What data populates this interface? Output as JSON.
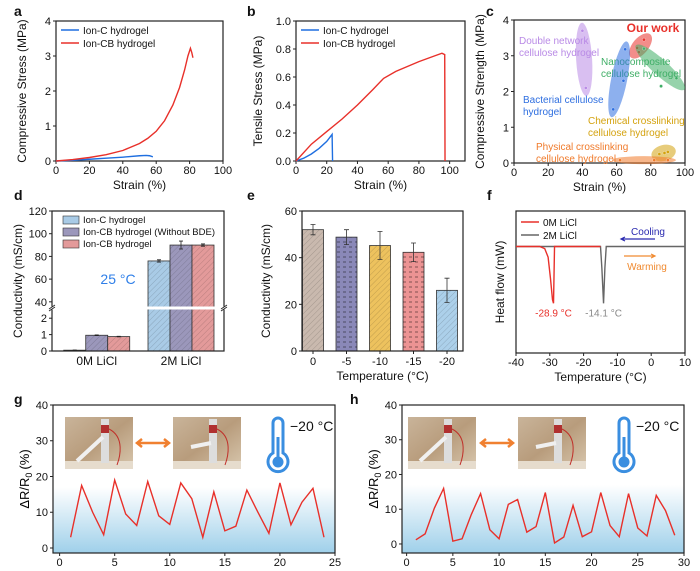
{
  "panel_letters": [
    "a",
    "b",
    "c",
    "d",
    "e",
    "f",
    "g",
    "h"
  ],
  "chart_data": [
    {
      "panel": "a",
      "type": "line",
      "xlabel": "Strain (%)",
      "ylabel": "Compressive Stress (MPa)",
      "xlim": [
        0,
        100
      ],
      "ylim": [
        0,
        4
      ],
      "xticks": [
        "0",
        "20",
        "40",
        "60",
        "80",
        "100"
      ],
      "yticks": [
        "0",
        "1",
        "2",
        "3",
        "4"
      ],
      "legend": "top-left",
      "series": [
        {
          "name": "Ion-C hydrogel",
          "color": "#1f6fe0",
          "points": [
            [
              0,
              0
            ],
            [
              10,
              0.02
            ],
            [
              20,
              0.05
            ],
            [
              30,
              0.08
            ],
            [
              40,
              0.11
            ],
            [
              50,
              0.15
            ],
            [
              54,
              0.16
            ],
            [
              56,
              0.15
            ],
            [
              58,
              0.12
            ]
          ]
        },
        {
          "name": "Ion-CB hydrogel",
          "color": "#e8302a",
          "points": [
            [
              0,
              0
            ],
            [
              10,
              0.04
            ],
            [
              20,
              0.1
            ],
            [
              30,
              0.18
            ],
            [
              40,
              0.3
            ],
            [
              50,
              0.5
            ],
            [
              55,
              0.65
            ],
            [
              60,
              0.85
            ],
            [
              65,
              1.15
            ],
            [
              70,
              1.6
            ],
            [
              74,
              2.1
            ],
            [
              77,
              2.6
            ],
            [
              79,
              3.0
            ],
            [
              80.5,
              3.22
            ],
            [
              81.3,
              3.1
            ],
            [
              82,
              2.95
            ]
          ]
        }
      ]
    },
    {
      "panel": "b",
      "type": "line",
      "xlabel": "Strain (%)",
      "ylabel": "Tensile Stress (MPa)",
      "xlim": [
        0,
        110
      ],
      "ylim": [
        0,
        1
      ],
      "xticks": [
        "0",
        "20",
        "40",
        "60",
        "80",
        "100"
      ],
      "yticks": [
        "0.0",
        "0.2",
        "0.4",
        "0.6",
        "0.8",
        "1.0"
      ],
      "legend": "top-left",
      "series": [
        {
          "name": "Ion-C hydrogel",
          "color": "#1f6fe0",
          "points": [
            [
              0,
              0
            ],
            [
              5,
              0.02
            ],
            [
              10,
              0.05
            ],
            [
              15,
              0.09
            ],
            [
              20,
              0.14
            ],
            [
              23.5,
              0.19
            ],
            [
              23.8,
              0
            ]
          ]
        },
        {
          "name": "Ion-CB hydrogel",
          "color": "#e8302a",
          "points": [
            [
              0,
              0
            ],
            [
              10,
              0.12
            ],
            [
              20,
              0.21
            ],
            [
              30,
              0.3
            ],
            [
              40,
              0.4
            ],
            [
              50,
              0.51
            ],
            [
              57,
              0.59
            ],
            [
              65,
              0.64
            ],
            [
              80,
              0.71
            ],
            [
              90,
              0.75
            ],
            [
              95,
              0.77
            ],
            [
              96.8,
              0.76
            ],
            [
              97,
              0
            ]
          ]
        }
      ]
    },
    {
      "panel": "c",
      "type": "scatter",
      "xlabel": "Strain (%)",
      "ylabel": "Compressive Strength (MPa)",
      "xlim": [
        0,
        100
      ],
      "ylim": [
        0,
        4
      ],
      "xticks": [
        "0",
        "20",
        "40",
        "60",
        "80",
        "100"
      ],
      "yticks": [
        "0",
        "1",
        "2",
        "3",
        "4"
      ],
      "groups": [
        {
          "lines": [
            "Double network",
            "cellulose hydrogel"
          ],
          "color": "#b98ae6",
          "points": [
            [
              40,
              3.7
            ],
            [
              42,
              2.1
            ]
          ]
        },
        {
          "lines": [
            "Our work"
          ],
          "color": "#e8302a",
          "points": [
            [
              72,
              3.22
            ],
            [
              73,
              3.1
            ],
            [
              76,
              3.45
            ]
          ]
        },
        {
          "lines": [
            "Nanocomposite",
            "cellulose hydrogel"
          ],
          "color": "#3fae66",
          "points": [
            [
              76,
              3.2
            ],
            [
              86,
              2.15
            ],
            [
              95,
              2.37
            ]
          ]
        },
        {
          "lines": [
            "Bacterial cellulose",
            "hydrogel"
          ],
          "color": "#2f6fe0",
          "points": [
            [
              65,
              3.18
            ],
            [
              64,
              2.3
            ],
            [
              58,
              1.5
            ]
          ]
        },
        {
          "lines": [
            "Chemical crosslinking",
            "cellulose hydrogel"
          ],
          "color": "#d4a20e",
          "points": [
            [
              85,
              0.25
            ],
            [
              88,
              0.28
            ],
            [
              90,
              0.31
            ]
          ]
        },
        {
          "lines": [
            "Physical crosslinking",
            "cellulose hydrogel"
          ],
          "color": "#f07a2a",
          "points": [
            [
              62,
              0.08
            ],
            [
              82,
              0.08
            ],
            [
              90,
              0.08
            ]
          ]
        }
      ]
    },
    {
      "panel": "d",
      "type": "bar",
      "ylabel": "Conductivity (mS/cm)",
      "categories": [
        "0M LiCl",
        "2M LiCl"
      ],
      "y_segments": [
        [
          0,
          2.5
        ],
        [
          35,
          120
        ]
      ],
      "yticks": [
        "0",
        "1",
        "2",
        "40",
        "60",
        "80",
        "100",
        "120"
      ],
      "legend": "top-left",
      "annotation": "25 °C",
      "annotation_color": "#2f7fe8",
      "series": [
        {
          "name": "Ion-C hydrogel",
          "color": "#a9cbe6",
          "values": [
            0.05,
            76
          ],
          "errors": [
            0.01,
            1
          ]
        },
        {
          "name": "Ion-CB hydrogel (Without BDE)",
          "color": "#9b97bb",
          "values": [
            0.96,
            90
          ],
          "errors": [
            0.02,
            3.5
          ]
        },
        {
          "name": "Ion-CB hydrogel",
          "color": "#e39a9a",
          "values": [
            0.88,
            90
          ],
          "errors": [
            0.02,
            1
          ]
        }
      ]
    },
    {
      "panel": "e",
      "type": "bar",
      "xlabel": "Temperature (°C)",
      "ylabel": "Conductivity (mS/cm)",
      "categories": [
        "0",
        "-5",
        "-10",
        "-15",
        "-20"
      ],
      "ylim": [
        0,
        60
      ],
      "yticks": [
        "0",
        "20",
        "40",
        "60"
      ],
      "values": [
        52,
        48.8,
        45.2,
        42.3,
        26
      ],
      "errors": [
        2.2,
        3.2,
        6,
        4,
        5.2
      ],
      "colors": [
        "#c9b9ae",
        "#8a88b8",
        "#edc25e",
        "#ec9393",
        "#acd0ea"
      ]
    },
    {
      "panel": "f",
      "type": "line",
      "xlabel": "Temperature (°C)",
      "ylabel": "Heat flow (mW)",
      "xlim": [
        -40,
        10
      ],
      "ylim": [
        -1.5,
        0.5
      ],
      "xticks": [
        "-40",
        "-30",
        "-20",
        "-10",
        "0",
        "10"
      ],
      "yticks": [],
      "legend": "top-left",
      "series": [
        {
          "name": "0M LiCl",
          "color": "#e8302a",
          "points": [
            [
              -40,
              0
            ],
            [
              -33,
              0
            ],
            [
              -31.5,
              -0.03
            ],
            [
              -30.5,
              -0.15
            ],
            [
              -29.8,
              -0.45
            ],
            [
              -29.2,
              -0.75
            ],
            [
              -28.9,
              -0.8
            ],
            [
              -28.6,
              0
            ],
            [
              -15,
              0
            ]
          ]
        },
        {
          "name": "2M LiCl",
          "color": "#666666",
          "points": [
            [
              -40,
              0
            ],
            [
              -28.6,
              0
            ],
            [
              -15,
              0
            ],
            [
              -14.6,
              -0.3
            ],
            [
              -14.1,
              -0.8
            ],
            [
              -13.7,
              -0.3
            ],
            [
              -13.3,
              0
            ],
            [
              10,
              0
            ]
          ]
        }
      ],
      "peak_labels": [
        {
          "text": "-28.9 °C",
          "x": -28.9,
          "color": "#e8302a"
        },
        {
          "text": "-14.1 °C",
          "x": -14.1,
          "color": "#888888"
        }
      ],
      "cooling": {
        "text": "Cooling",
        "color": "#2a2ab0"
      },
      "warming": {
        "text": "Warming",
        "color": "#f08a30"
      }
    },
    {
      "panel": "g",
      "type": "line",
      "ylabel": "ΔR/R",
      "ylabel_sub": "0",
      "ylabel_unit": "(%)",
      "xlim": [
        -0.6,
        25
      ],
      "ylim": [
        -1.4,
        40
      ],
      "xticks": [
        "0",
        "5",
        "10",
        "15",
        "20",
        "25"
      ],
      "yticks": [
        "0",
        "10",
        "20",
        "30",
        "40"
      ],
      "annotation": "−20 °C",
      "series": [
        {
          "color": "#e8302a",
          "x": [
            1,
            2,
            3,
            4,
            5,
            6,
            7,
            8,
            9,
            10,
            11,
            12,
            13,
            14,
            15,
            16,
            17,
            18,
            19,
            20,
            21,
            22,
            23,
            24
          ],
          "y": [
            3,
            17.5,
            10,
            3.7,
            19,
            9.5,
            6.3,
            18.6,
            9,
            6.6,
            18.2,
            13.8,
            3,
            15.7,
            4.8,
            6.1,
            16.2,
            10,
            4.1,
            18.2,
            6.5,
            12.8,
            16.7,
            3
          ]
        }
      ]
    },
    {
      "panel": "h",
      "type": "line",
      "ylabel": "ΔR/R",
      "ylabel_sub": "0",
      "ylabel_unit": "(%)",
      "xlim": [
        -0.5,
        30
      ],
      "ylim": [
        -2.6,
        40
      ],
      "xticks": [
        "0",
        "5",
        "10",
        "15",
        "20",
        "25",
        "30"
      ],
      "yticks": [
        "0",
        "10",
        "20",
        "30",
        "40"
      ],
      "annotation": "−20 °C",
      "series": [
        {
          "color": "#e8302a",
          "x": [
            1,
            2,
            3,
            4,
            5,
            6,
            7,
            8,
            9,
            10,
            11,
            12,
            13,
            14,
            15,
            16,
            17,
            18,
            19,
            20,
            21,
            22,
            23,
            24,
            25,
            26,
            27,
            28,
            29
          ],
          "y": [
            1.2,
            2.9,
            10.3,
            16,
            0.8,
            1.5,
            8.5,
            14.5,
            4.1,
            1.5,
            11.4,
            12.8,
            3.4,
            5,
            14.8,
            0.3,
            2,
            11.1,
            2.1,
            3.5,
            14.8,
            5.3,
            2.1,
            14.5,
            4.6,
            2.3,
            14,
            9.6,
            2.5
          ]
        }
      ]
    }
  ]
}
